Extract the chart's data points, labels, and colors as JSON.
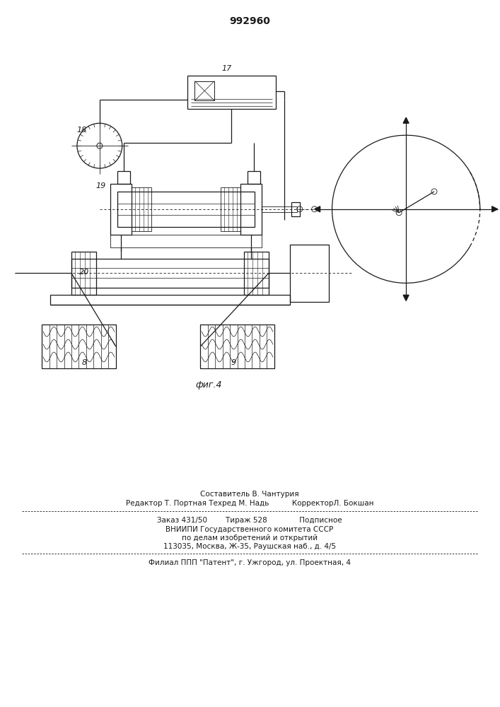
{
  "title": "992960",
  "fig_label": "фиг.4",
  "footer_lines": [
    "Составитель В. Чантурия",
    "Редактор Т. Портная Техред М. Надь          КорректорЛ. Бокшан",
    "Заказ 431/50        Тираж 528              Подписное",
    "ВНИИПИ Государственного комитета СССР",
    "по делам изобретений и открытий",
    "113035, Москва, Ж-35, Раушская наб., д. 4/5",
    "Филиал ППП \"Патент\", г. Ужгород, ул. Проектная, 4"
  ],
  "bg_color": "#ffffff"
}
